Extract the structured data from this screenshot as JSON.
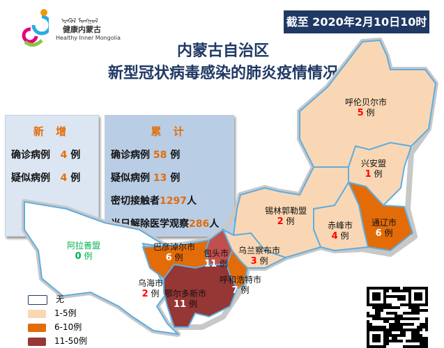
{
  "logo": {
    "cn": "健康内蒙古",
    "en": "Healthy Inner Mongolia",
    "mongolian": "ᠡᠷᠡᠭᠦᠯ ᠮᠣᠩᠭᠣᠯ"
  },
  "date_label": "截至 2020年2月10日10时",
  "title": {
    "line1": "内蒙古自治区",
    "line2": "新型冠状病毒感染的肺炎疫情情况"
  },
  "new": {
    "heading": "新 增",
    "confirmed_label": "确诊病例",
    "confirmed": "4",
    "suspected_label": "疑似病例",
    "suspected": "4",
    "unit": "例"
  },
  "total": {
    "heading": "累 计",
    "confirmed_label": "确诊病例",
    "confirmed": "58",
    "suspected_label": "疑似病例",
    "suspected": "13",
    "unit": "例",
    "contacts_label": "密切接触者",
    "contacts": "1297",
    "released_label": "当日解除医学观察",
    "released": "286",
    "person_unit": "人"
  },
  "colors": {
    "none": "#ffffff",
    "low": "#fad7b4",
    "mid": "#e36c09",
    "high": "#953735",
    "baotou": "#c0504d",
    "border": "#5dade2"
  },
  "regions": [
    {
      "name": "呼伦贝尔市",
      "count": "5",
      "unit": "例"
    },
    {
      "name": "兴安盟",
      "count": "1",
      "unit": "例"
    },
    {
      "name": "通辽市",
      "count": "6",
      "unit": "例"
    },
    {
      "name": "赤峰市",
      "count": "4",
      "unit": "例"
    },
    {
      "name": "锡林郭勒盟",
      "count": "2",
      "unit": "例"
    },
    {
      "name": "乌兰察布市",
      "count": "3",
      "unit": "例"
    },
    {
      "name": "呼和浩特市",
      "count": "7",
      "unit": "例"
    },
    {
      "name": "包头市",
      "count": "11",
      "unit": "例"
    },
    {
      "name": "巴彦淖尔市",
      "count": "6",
      "unit": "例"
    },
    {
      "name": "乌海市",
      "count": "2",
      "unit": "例"
    },
    {
      "name": "鄂尔多斯市",
      "count": "11",
      "unit": "例"
    },
    {
      "name": "阿拉善盟",
      "count": "0",
      "unit": "例"
    }
  ],
  "legend": [
    "无",
    "1-5例",
    "6-10例",
    "11-50例"
  ]
}
